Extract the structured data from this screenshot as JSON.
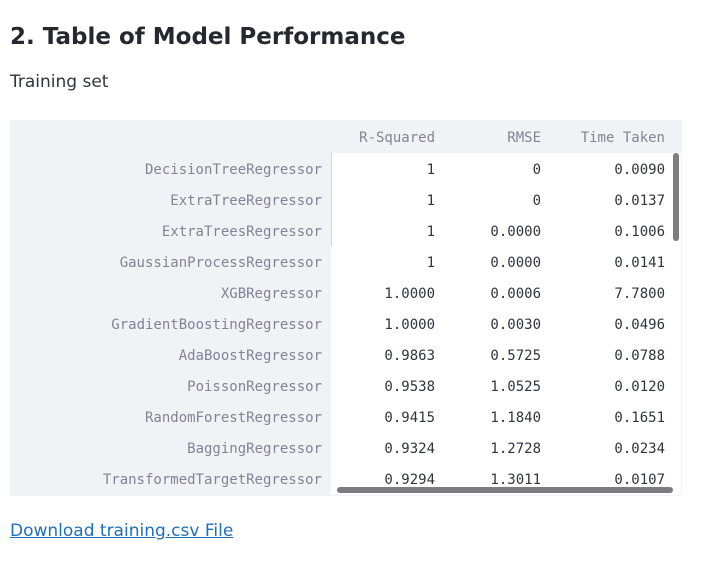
{
  "heading": "2. Table of Model Performance",
  "subtitle": "Training set",
  "table": {
    "columns": [
      "R-Squared",
      "RMSE",
      "Time Taken"
    ],
    "rows": [
      {
        "model": "DecisionTreeRegressor",
        "r_squared": "1",
        "rmse": "0",
        "time_taken": "0.0090"
      },
      {
        "model": "ExtraTreeRegressor",
        "r_squared": "1",
        "rmse": "0",
        "time_taken": "0.0137"
      },
      {
        "model": "ExtraTreesRegressor",
        "r_squared": "1",
        "rmse": "0.0000",
        "time_taken": "0.1006"
      },
      {
        "model": "GaussianProcessRegressor",
        "r_squared": "1",
        "rmse": "0.0000",
        "time_taken": "0.0141"
      },
      {
        "model": "XGBRegressor",
        "r_squared": "1.0000",
        "rmse": "0.0006",
        "time_taken": "7.7800"
      },
      {
        "model": "GradientBoostingRegressor",
        "r_squared": "1.0000",
        "rmse": "0.0030",
        "time_taken": "0.0496"
      },
      {
        "model": "AdaBoostRegressor",
        "r_squared": "0.9863",
        "rmse": "0.5725",
        "time_taken": "0.0788"
      },
      {
        "model": "PoissonRegressor",
        "r_squared": "0.9538",
        "rmse": "1.0525",
        "time_taken": "0.0120"
      },
      {
        "model": "RandomForestRegressor",
        "r_squared": "0.9415",
        "rmse": "1.1840",
        "time_taken": "0.1651"
      },
      {
        "model": "BaggingRegressor",
        "r_squared": "0.9324",
        "rmse": "1.2728",
        "time_taken": "0.0234"
      },
      {
        "model": "TransformedTargetRegressor",
        "r_squared": "0.9294",
        "rmse": "1.3011",
        "time_taken": "0.0107"
      }
    ]
  },
  "download": {
    "label": "Download training.csv File"
  },
  "colors": {
    "header_bg": "#f0f2f6",
    "index_text": "#808495",
    "cell_text": "#31333f",
    "link": "#1f6fbf",
    "scrollbar": "#7c7c81"
  }
}
